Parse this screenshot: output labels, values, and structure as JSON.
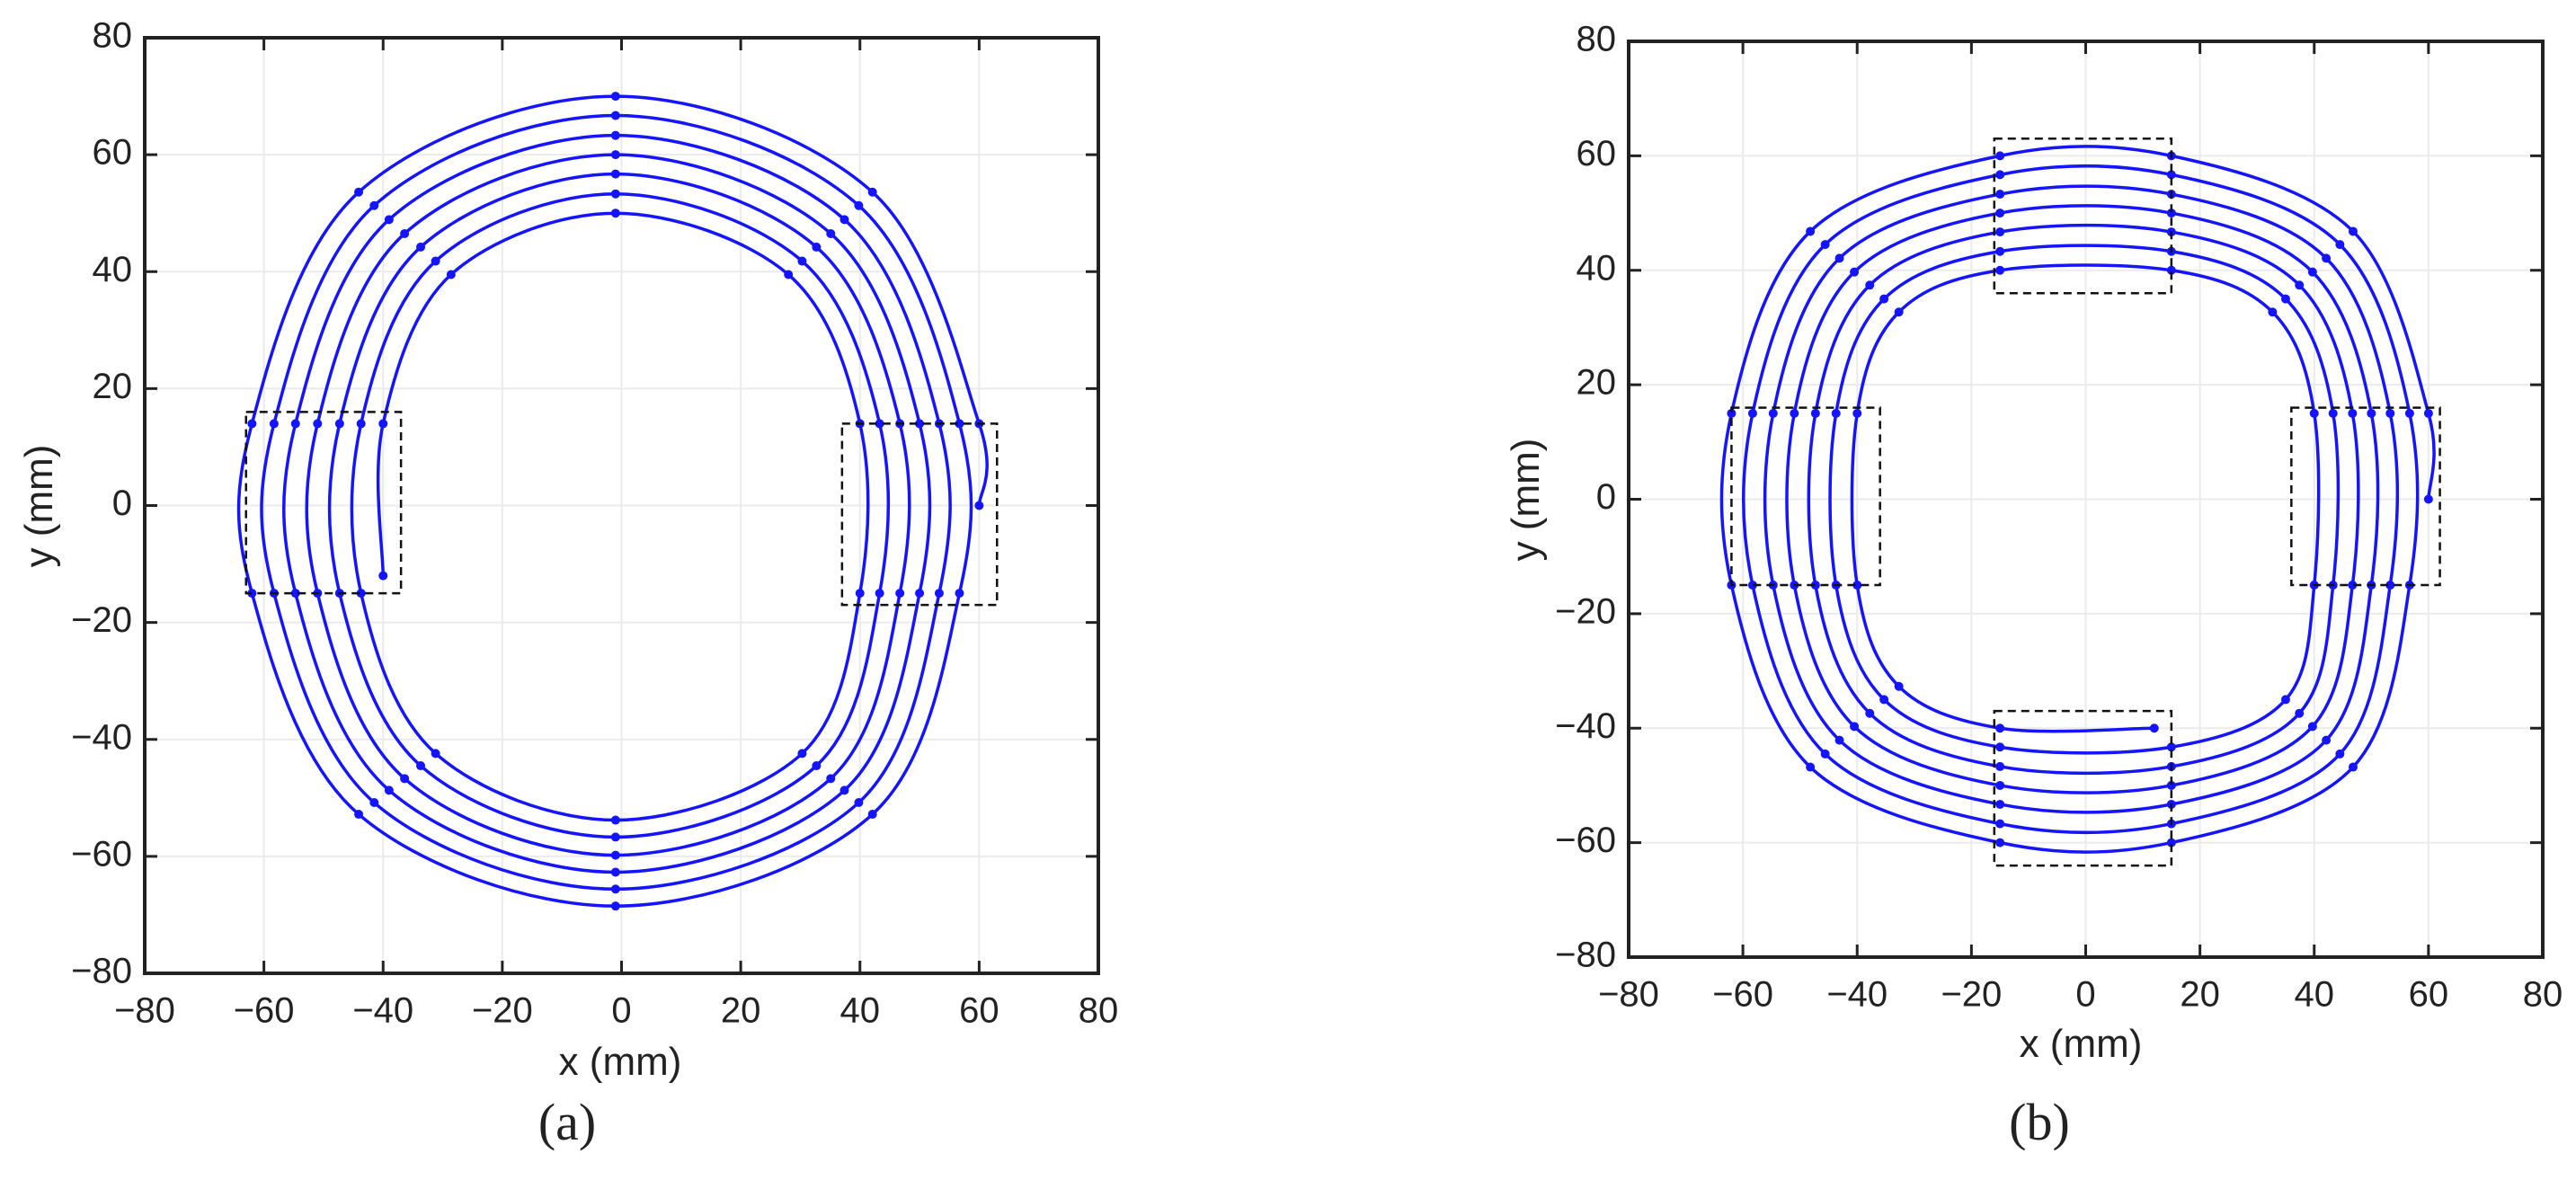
{
  "chart_data": [
    {
      "type": "line",
      "caption": "(a)",
      "xlabel": "x (mm)",
      "ylabel": "y (mm)",
      "color": "#1414ff",
      "grid": true,
      "xlim": [
        -80,
        80
      ],
      "ylim": [
        -80,
        80
      ],
      "xticks": [
        {
          "value": -80,
          "label": "−80"
        },
        {
          "value": -60,
          "label": "−60"
        },
        {
          "value": -40,
          "label": "−40"
        },
        {
          "value": -20,
          "label": "−20"
        },
        0,
        20,
        40,
        60,
        80
      ],
      "yticks": [
        {
          "value": -80,
          "label": "−80"
        },
        {
          "value": -60,
          "label": "−60"
        },
        {
          "value": -40,
          "label": "−40"
        },
        {
          "value": -20,
          "label": "−20"
        },
        0,
        20,
        40,
        60,
        80
      ],
      "x": [
        60,
        60,
        42.1,
        -1,
        -44.1,
        -62,
        -62,
        -44.1,
        -1,
        42.1,
        56.7,
        56.7,
        39.8,
        -1,
        -41.5,
        -58.3,
        -58.3,
        -41.5,
        -1,
        39.8,
        53.3,
        53.3,
        37.4,
        -1,
        -39,
        -54.7,
        -54.7,
        -39,
        -1,
        37.4,
        50,
        50,
        35.1,
        -1,
        -36.4,
        -51,
        -51,
        -36.4,
        -1,
        35.1,
        46.7,
        46.7,
        32.7,
        -1,
        -33.7,
        -47.3,
        -47.3,
        -33.7,
        -1,
        32.7,
        43.3,
        43.3,
        30.3,
        -1,
        -31.2,
        -43.7,
        -43.7,
        -31.2,
        -1,
        30.3,
        40,
        40,
        28,
        -1,
        -28.6,
        -40,
        -40
      ],
      "values": [
        0,
        14,
        53.6,
        70,
        53.6,
        14,
        -15,
        -52.8,
        -68.5,
        -52.8,
        -15,
        14,
        51.3,
        66.7,
        51.3,
        14,
        -15,
        -50.8,
        -65.6,
        -50.8,
        -15,
        14,
        48.9,
        63.3,
        48.9,
        14,
        -15,
        -48.7,
        -62.7,
        -48.7,
        -15,
        14,
        46.5,
        60,
        46.5,
        14,
        -15,
        -46.7,
        -59.8,
        -46.7,
        -15,
        14,
        44.2,
        56.7,
        44.2,
        14,
        -15,
        -44.5,
        -56.7,
        -44.5,
        -15,
        14,
        41.8,
        53.3,
        41.8,
        14,
        -15,
        -42.4,
        -53.8,
        -42.4,
        -15,
        14,
        39.5,
        50,
        39.5,
        14,
        -12
      ],
      "boxes": [
        {
          "x": [
            -63,
            -37
          ],
          "y": [
            -15,
            16
          ]
        },
        {
          "x": [
            37,
            63
          ],
          "y": [
            -17,
            14
          ]
        }
      ]
    },
    {
      "type": "line",
      "caption": "(b)",
      "xlabel": "x (mm)",
      "ylabel": "y (mm)",
      "color": "#1414ff",
      "grid": true,
      "xlim": [
        -80,
        80
      ],
      "ylim": [
        -80,
        80
      ],
      "xticks": [
        {
          "value": -80,
          "label": "−80"
        },
        {
          "value": -60,
          "label": "−60"
        },
        {
          "value": -40,
          "label": "−40"
        },
        {
          "value": -20,
          "label": "−20"
        },
        0,
        20,
        40,
        60,
        80
      ],
      "yticks": [
        {
          "value": -80,
          "label": "−80"
        },
        {
          "value": -60,
          "label": "−60"
        },
        {
          "value": -40,
          "label": "−40"
        },
        {
          "value": -20,
          "label": "−20"
        },
        0,
        20,
        40,
        60,
        80
      ],
      "x": [
        60,
        60,
        46.8,
        15,
        -15,
        -48.2,
        -62,
        -62,
        -48.2,
        -15,
        15,
        46.8,
        56.7,
        56.7,
        44.5,
        15,
        -15,
        -45.6,
        -58.3,
        -58.3,
        -45.6,
        -15,
        15,
        44.5,
        53.3,
        53.3,
        42.1,
        15,
        -15,
        -43.1,
        -54.7,
        -54.7,
        -43.1,
        -15,
        15,
        42.1,
        50,
        50,
        39.7,
        15,
        -15,
        -40.5,
        -51,
        -51,
        -40.5,
        -15,
        15,
        39.7,
        46.7,
        46.7,
        37.4,
        15,
        -15,
        -37.8,
        -47.3,
        -47.3,
        -37.8,
        -15,
        15,
        37.4,
        43.3,
        43.3,
        35,
        15,
        -15,
        -35.3,
        -43.7,
        -43.7,
        -35.3,
        -15,
        15,
        35,
        40,
        40,
        32.7,
        15,
        -15,
        -32.7,
        -40,
        -40,
        -32.7,
        -15,
        12
      ],
      "values": [
        0,
        15,
        46.8,
        60,
        60,
        46.8,
        15,
        -15,
        -46.8,
        -60,
        -60,
        -46.8,
        -15,
        15,
        44.5,
        56.7,
        56.7,
        44.5,
        15,
        -15,
        -44.5,
        -56.7,
        -56.7,
        -44.5,
        -15,
        15,
        42.1,
        53.3,
        53.3,
        42.1,
        15,
        -15,
        -42.1,
        -53.3,
        -53.3,
        -42.1,
        -15,
        15,
        39.7,
        50,
        50,
        39.7,
        15,
        -15,
        -39.7,
        -50,
        -50,
        -39.7,
        -15,
        15,
        37.4,
        46.7,
        46.7,
        37.4,
        15,
        -15,
        -37.4,
        -46.7,
        -46.7,
        -37.4,
        -15,
        15,
        35,
        43.3,
        43.3,
        35,
        15,
        -15,
        -35,
        -43.3,
        -43.3,
        -35,
        -15,
        15,
        32.7,
        40,
        40,
        32.7,
        15,
        -15,
        -32.7,
        -40,
        -40
      ],
      "boxes": [
        {
          "x": [
            -62,
            -36
          ],
          "y": [
            -15,
            16
          ]
        },
        {
          "x": [
            36,
            62
          ],
          "y": [
            -15,
            16
          ]
        },
        {
          "x": [
            -16,
            15
          ],
          "y": [
            36,
            63
          ]
        },
        {
          "x": [
            -16,
            15
          ],
          "y": [
            -64,
            -37
          ]
        }
      ]
    }
  ]
}
